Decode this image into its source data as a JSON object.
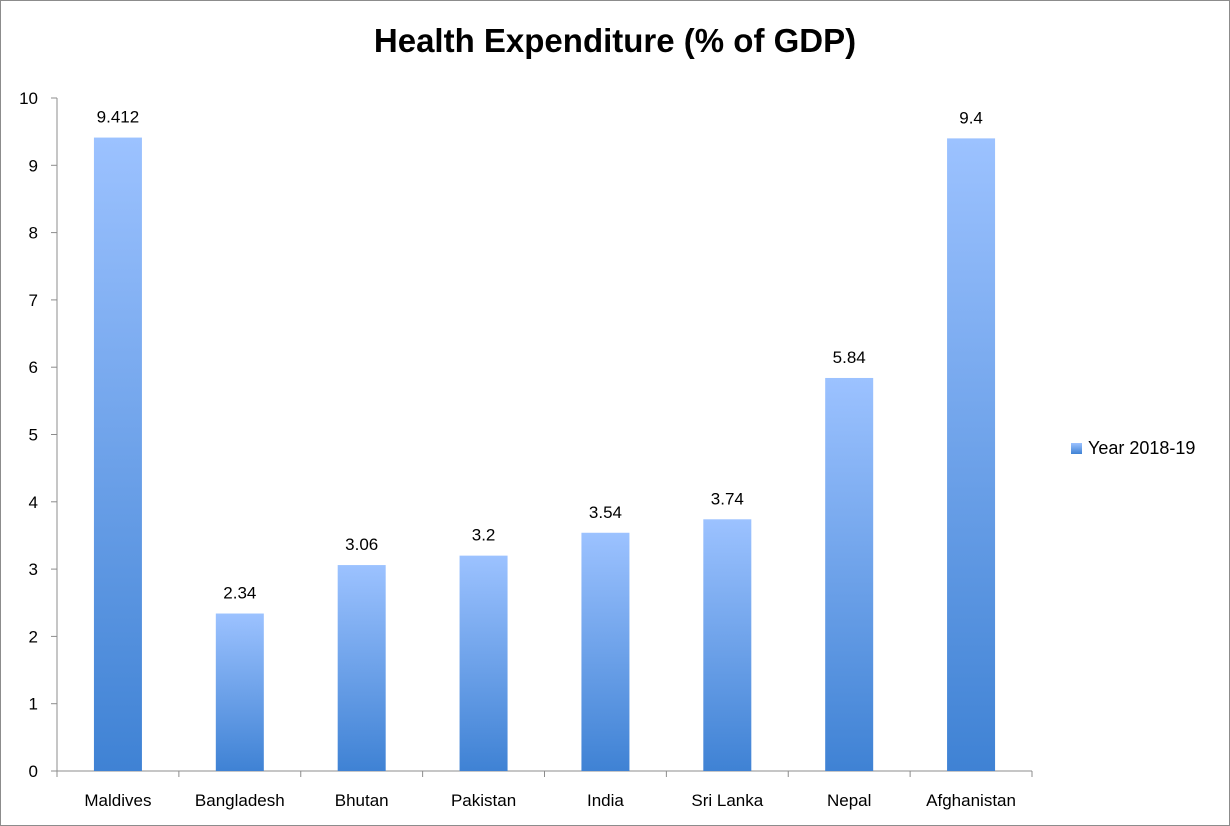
{
  "chart_data": {
    "type": "bar",
    "title": "Health Expenditure (% of GDP)",
    "categories": [
      "Maldives",
      "Bangladesh",
      "Bhutan",
      "Pakistan",
      "India",
      "Sri Lanka",
      "Nepal",
      "Afghanistan"
    ],
    "series": [
      {
        "name": "Year 2018-19",
        "values": [
          9.412,
          2.34,
          3.06,
          3.2,
          3.54,
          3.74,
          5.84,
          9.4
        ],
        "labels": [
          "9.412",
          "2.34",
          "3.06",
          "3.2",
          "3.54",
          "3.74",
          "5.84",
          "9.4"
        ]
      }
    ],
    "ylim": [
      0,
      10
    ],
    "yticks": [
      0,
      1,
      2,
      3,
      4,
      5,
      6,
      7,
      8,
      9,
      10
    ],
    "ytick_labels": [
      "0",
      "1",
      "2",
      "3",
      "4",
      "5",
      "6",
      "7",
      "8",
      "9",
      "10"
    ],
    "xlabel": "",
    "ylabel": "",
    "grid": false,
    "legend": "right",
    "colors": {
      "bar_top": "#9cc2ff",
      "bar_bottom": "#3f82d4",
      "axis": "#8c8c8c",
      "text": "#000000"
    }
  }
}
